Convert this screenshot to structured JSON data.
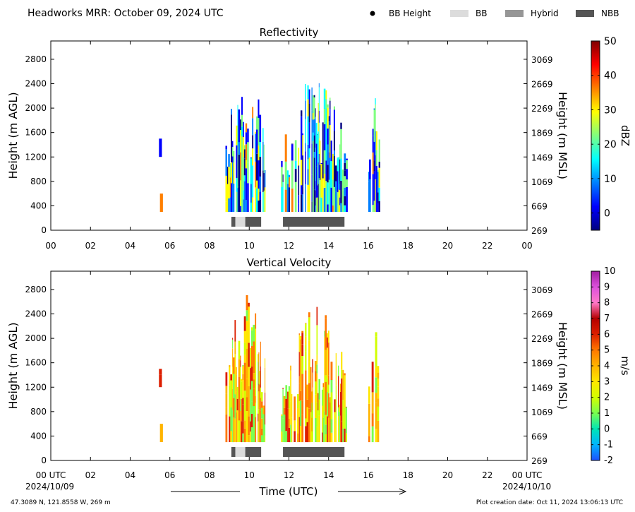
{
  "figure": {
    "title": "Headworks MRR:  October 09, 2024 UTC",
    "legend": [
      {
        "label": "BB Height",
        "kind": "dot",
        "color": "#000000"
      },
      {
        "label": "BB",
        "kind": "box",
        "color": "#dcdcdc"
      },
      {
        "label": "Hybrid",
        "kind": "box",
        "color": "#969696"
      },
      {
        "label": "NBB",
        "kind": "box",
        "color": "#555555"
      }
    ],
    "xlabel": "Time (UTC)",
    "x_start_label": "00 UTC",
    "x_end_label": "00 UTC",
    "date_start": "2024/10/09",
    "date_end": "2024/10/10",
    "location": "47.3089 N, 121.8558 W, 269 m",
    "creation": "Plot creation date: Oct 11, 2024 13:06:13 UTC"
  },
  "chart_data": [
    {
      "type": "heatmap",
      "title": "Reflectivity",
      "ylabel": "Height (m AGL)",
      "ylabel_right": "Height (m MSL)",
      "xlim": [
        0,
        24
      ],
      "ylim": [
        0,
        3100
      ],
      "x_ticks": [
        "00",
        "02",
        "04",
        "06",
        "08",
        "10",
        "12",
        "14",
        "16",
        "18",
        "20",
        "22",
        "00"
      ],
      "y_ticks": [
        0,
        400,
        800,
        1200,
        1600,
        2000,
        2400,
        2800
      ],
      "y_ticks_right": [
        269,
        669,
        1069,
        1469,
        1869,
        2269,
        2669,
        3069
      ],
      "colorbar": {
        "label": "dBZ",
        "range": [
          -5,
          50
        ],
        "ticks": [
          0,
          10,
          20,
          30,
          40,
          50
        ],
        "colors": [
          "#00007f",
          "#0000ff",
          "#007fff",
          "#00ffff",
          "#7fff7f",
          "#ffff00",
          "#ff7f00",
          "#ff0000",
          "#7f0000"
        ]
      },
      "echo_periods": [
        {
          "start": 5.45,
          "end": 5.6,
          "bottom": 1200,
          "top": 1500
        },
        {
          "start": 5.5,
          "end": 5.65,
          "bottom": 300,
          "top": 600
        },
        {
          "start": 8.8,
          "end": 10.8,
          "bottom": 300,
          "top": 2800
        },
        {
          "start": 11.6,
          "end": 14.9,
          "bottom": 300,
          "top": 2600
        },
        {
          "start": 16.0,
          "end": 16.6,
          "bottom": 300,
          "top": 2500
        }
      ],
      "bb_segments": [
        {
          "start": 9.1,
          "end": 9.3,
          "type": "NBB"
        },
        {
          "start": 9.3,
          "end": 9.8,
          "type": "BB"
        },
        {
          "start": 9.8,
          "end": 10.6,
          "type": "NBB"
        },
        {
          "start": 11.7,
          "end": 14.8,
          "type": "NBB"
        }
      ]
    },
    {
      "type": "heatmap",
      "title": "Vertical Velocity",
      "ylabel": "Height (m AGL)",
      "ylabel_right": "Height (m MSL)",
      "xlim": [
        0,
        24
      ],
      "ylim": [
        0,
        3100
      ],
      "x_ticks": [
        "00",
        "02",
        "04",
        "06",
        "08",
        "10",
        "12",
        "14",
        "16",
        "18",
        "20",
        "22",
        "00"
      ],
      "y_ticks": [
        0,
        400,
        800,
        1200,
        1600,
        2000,
        2400,
        2800
      ],
      "y_ticks_right": [
        269,
        669,
        1069,
        1469,
        1869,
        2269,
        2669,
        3069
      ],
      "colorbar": {
        "label": "m/s",
        "range": [
          -2,
          10
        ],
        "ticks": [
          -2,
          -1,
          0,
          1,
          2,
          3,
          4,
          5,
          6,
          7,
          8,
          9,
          10
        ],
        "colors": [
          "#1e50ff",
          "#00b4ff",
          "#00e6b4",
          "#78ff50",
          "#d2ff00",
          "#ffe600",
          "#ffb400",
          "#ff7800",
          "#dc1e00",
          "#b40000",
          "#ff78c8",
          "#dc50dc",
          "#a01ea0"
        ]
      },
      "echo_periods": [
        {
          "start": 5.45,
          "end": 5.6,
          "bottom": 1200,
          "top": 1500
        },
        {
          "start": 5.5,
          "end": 5.65,
          "bottom": 300,
          "top": 600
        },
        {
          "start": 8.8,
          "end": 10.8,
          "bottom": 300,
          "top": 2800
        },
        {
          "start": 11.6,
          "end": 14.9,
          "bottom": 300,
          "top": 2600
        },
        {
          "start": 16.0,
          "end": 16.6,
          "bottom": 300,
          "top": 2500
        }
      ],
      "bb_segments": [
        {
          "start": 9.1,
          "end": 9.3,
          "type": "NBB"
        },
        {
          "start": 9.3,
          "end": 9.8,
          "type": "BB"
        },
        {
          "start": 9.8,
          "end": 10.6,
          "type": "NBB"
        },
        {
          "start": 11.7,
          "end": 14.8,
          "type": "NBB"
        }
      ]
    }
  ]
}
